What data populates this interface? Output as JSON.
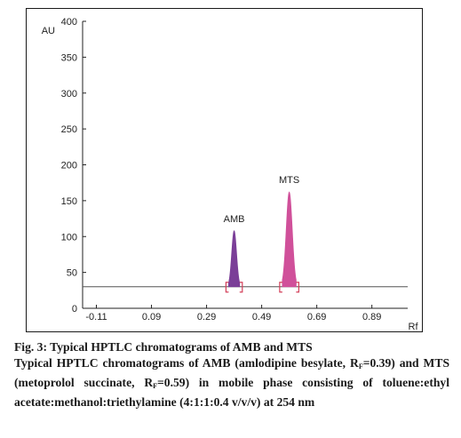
{
  "chart_data": {
    "type": "line",
    "xlabel": "Rf",
    "ylabel": "AU",
    "xlim": [
      -0.16,
      1.02
    ],
    "ylim": [
      0,
      400
    ],
    "x_ticks": [
      -0.11,
      0.09,
      0.29,
      0.49,
      0.69,
      0.89
    ],
    "x_tick_labels": [
      "-0.11",
      "0.09",
      "0.29",
      "0.49",
      "0.69",
      "0.89"
    ],
    "y_ticks": [
      0,
      50,
      100,
      150,
      200,
      250,
      300,
      350,
      400
    ],
    "y_tick_labels": [
      "0",
      "50",
      "100",
      "150",
      "200",
      "250",
      "300",
      "350",
      "400"
    ],
    "baseline_au": 30,
    "peaks": [
      {
        "name": "AMB",
        "rf": 0.39,
        "height_au": 108,
        "halfwidth_rf": 0.02,
        "color": "#7b3f98",
        "bracket_color": "#d4405a"
      },
      {
        "name": "MTS",
        "rf": 0.59,
        "height_au": 162,
        "halfwidth_rf": 0.025,
        "color": "#d0509a",
        "bracket_color": "#d4405a"
      }
    ],
    "grid": false
  },
  "caption": {
    "fig_label": "Fig. 3: Typical HPTLC chromatograms of AMB and MTS",
    "line2_pre": "Typical HPTLC chromatograms of AMB (amlodipine besylate, R",
    "rf_sub": "F",
    "line2_mid": "=0.39) and MTS (metoprolol succinate, R",
    "line2_post": "=0.59) in mobile phase consisting of toluene:ethyl acetate:methanol:triethylamine (4:1:1:0.4 v/v/v) at 254 nm"
  }
}
